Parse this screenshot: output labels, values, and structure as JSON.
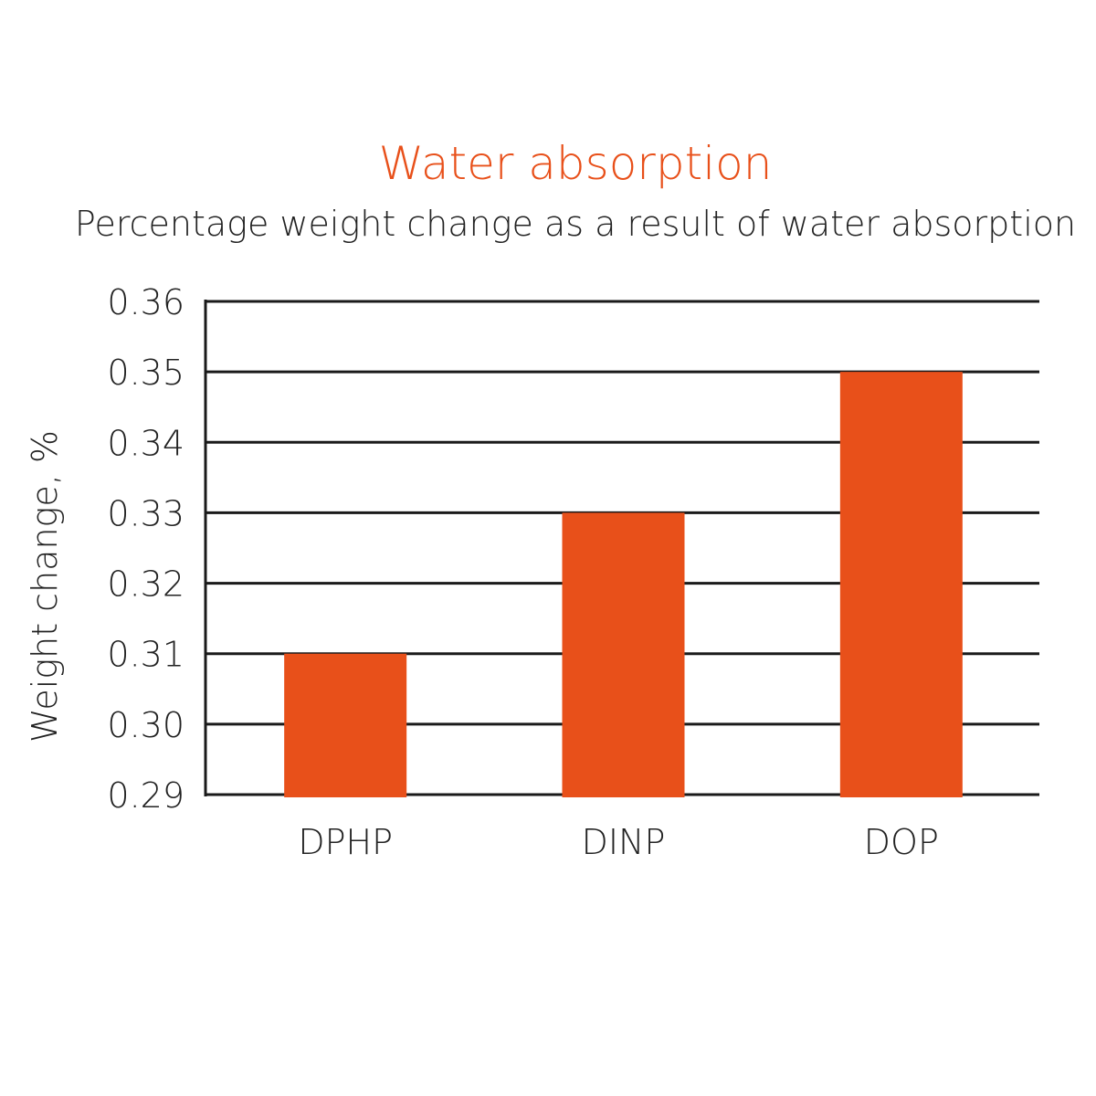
{
  "chart_data": {
    "type": "bar",
    "title": "Water absorption",
    "subtitle": "Percentage weight change as a result of water absorption",
    "ylabel": "Weight change, %",
    "xlabel": "",
    "categories": [
      "DPHP",
      "DINP",
      "DOP"
    ],
    "values": [
      0.31,
      0.33,
      0.35
    ],
    "ylim": [
      0.29,
      0.36
    ],
    "yticks": [
      "0.29",
      "0.30",
      "0.31",
      "0.32",
      "0.33",
      "0.34",
      "0.35",
      "0.36"
    ],
    "grid": true,
    "legend": "none",
    "colors": {
      "bar": "#e8501a",
      "title": "#e8501a",
      "text": "#222222",
      "grid": "#1a1a1a"
    }
  }
}
